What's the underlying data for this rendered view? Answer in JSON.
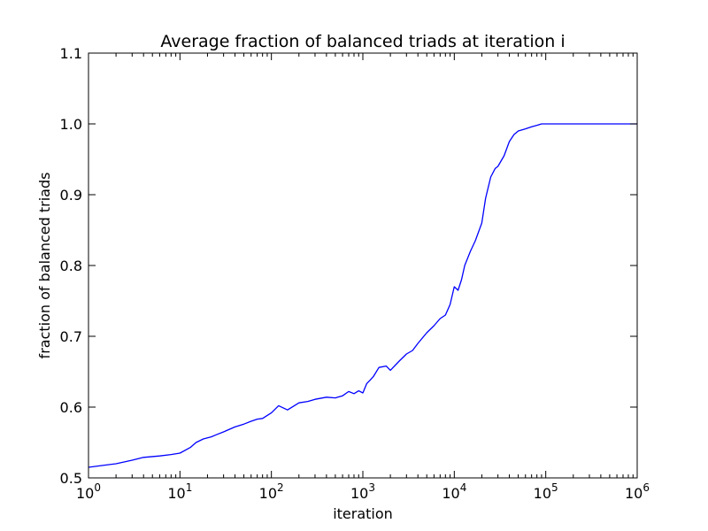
{
  "chart_data": {
    "type": "line",
    "title": "Average fraction of balanced triads at iteration i",
    "xlabel": "iteration",
    "ylabel": "fraction of balanced triads",
    "x_scale": "log",
    "xlim": [
      1,
      1000000
    ],
    "ylim": [
      0.5,
      1.1
    ],
    "grid": false,
    "line_color": "#0000ff",
    "x_ticks": [
      {
        "value": 1,
        "base": "10",
        "exp": "0"
      },
      {
        "value": 10,
        "base": "10",
        "exp": "1"
      },
      {
        "value": 100,
        "base": "10",
        "exp": "2"
      },
      {
        "value": 1000,
        "base": "10",
        "exp": "3"
      },
      {
        "value": 10000,
        "base": "10",
        "exp": "4"
      },
      {
        "value": 100000,
        "base": "10",
        "exp": "5"
      },
      {
        "value": 1000000,
        "base": "10",
        "exp": "6"
      }
    ],
    "y_ticks": [
      {
        "value": 0.5,
        "label": "0.5"
      },
      {
        "value": 0.6,
        "label": "0.6"
      },
      {
        "value": 0.7,
        "label": "0.7"
      },
      {
        "value": 0.8,
        "label": "0.8"
      },
      {
        "value": 0.9,
        "label": "0.9"
      },
      {
        "value": 1.0,
        "label": "1.0"
      },
      {
        "value": 1.1,
        "label": "1.1"
      }
    ],
    "series": [
      {
        "x": [
          1,
          1.5,
          2,
          3,
          4,
          6,
          8,
          10,
          13,
          15,
          18,
          22,
          25,
          30,
          40,
          50,
          60,
          70,
          80,
          100,
          120,
          150,
          200,
          250,
          300,
          400,
          500,
          600,
          700,
          800,
          900,
          1000,
          1100,
          1200,
          1300,
          1500,
          1800,
          2000,
          2500,
          3000,
          3500,
          4000,
          5000,
          6000,
          7000,
          8000,
          9000,
          10000,
          11000,
          12000,
          13000,
          15000,
          17000,
          20000,
          22000,
          25000,
          28000,
          30000,
          35000,
          40000,
          45000,
          50000,
          60000,
          70000,
          80000,
          90000,
          100000,
          1000000
        ],
        "y": [
          0.515,
          0.518,
          0.52,
          0.525,
          0.529,
          0.531,
          0.533,
          0.535,
          0.543,
          0.55,
          0.555,
          0.558,
          0.561,
          0.565,
          0.572,
          0.576,
          0.58,
          0.583,
          0.584,
          0.592,
          0.602,
          0.596,
          0.606,
          0.608,
          0.611,
          0.614,
          0.613,
          0.616,
          0.622,
          0.619,
          0.623,
          0.62,
          0.633,
          0.638,
          0.643,
          0.656,
          0.658,
          0.652,
          0.665,
          0.675,
          0.68,
          0.69,
          0.705,
          0.715,
          0.725,
          0.73,
          0.745,
          0.77,
          0.765,
          0.78,
          0.8,
          0.82,
          0.835,
          0.86,
          0.895,
          0.925,
          0.937,
          0.94,
          0.955,
          0.975,
          0.985,
          0.99,
          0.993,
          0.996,
          0.998,
          1.0,
          1.0,
          1.0
        ]
      }
    ]
  }
}
